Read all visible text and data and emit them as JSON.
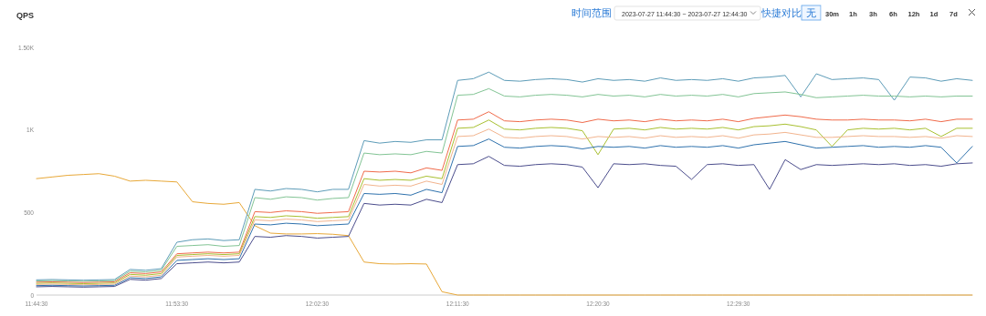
{
  "chart_data": {
    "type": "line",
    "title": "QPS",
    "annotations": [
      "时间范围",
      "2023-07-27 11:44:30 ~ 2023-07-27 12:44:30",
      "快捷对比",
      "无",
      "30m",
      "1h",
      "3h",
      "6h",
      "12h",
      "1d",
      "7d"
    ],
    "x": [
      "2023-07-27T11:44:30",
      "2023-07-27T11:45:30",
      "2023-07-27T11:46:30",
      "2023-07-27T11:47:30",
      "2023-07-27T11:48:30",
      "2023-07-27T11:49:30",
      "2023-07-27T11:50:30",
      "2023-07-27T11:51:30",
      "2023-07-27T11:52:30",
      "2023-07-27T11:53:30",
      "2023-07-27T11:54:30",
      "2023-07-27T11:55:30",
      "2023-07-27T11:56:30",
      "2023-07-27T11:57:30",
      "2023-07-27T11:58:30",
      "2023-07-27T11:59:30",
      "2023-07-27T12:00:30",
      "2023-07-27T12:01:30",
      "2023-07-27T12:02:30",
      "2023-07-27T12:03:30",
      "2023-07-27T12:04:30",
      "2023-07-27T12:05:30",
      "2023-07-27T12:06:30",
      "2023-07-27T12:07:30",
      "2023-07-27T12:08:30",
      "2023-07-27T12:09:30",
      "2023-07-27T12:10:30",
      "2023-07-27T12:11:30",
      "2023-07-27T12:12:30",
      "2023-07-27T12:13:30",
      "2023-07-27T12:14:30",
      "2023-07-27T12:15:30",
      "2023-07-27T12:16:30",
      "2023-07-27T12:17:30",
      "2023-07-27T12:18:30",
      "2023-07-27T12:19:30",
      "2023-07-27T12:20:30",
      "2023-07-27T12:21:30",
      "2023-07-27T12:22:30",
      "2023-07-27T12:23:30",
      "2023-07-27T12:24:30",
      "2023-07-27T12:25:30",
      "2023-07-27T12:26:30",
      "2023-07-27T12:27:30",
      "2023-07-27T12:28:30",
      "2023-07-27T12:29:30",
      "2023-07-27T12:30:30",
      "2023-07-27T12:31:30",
      "2023-07-27T12:32:30",
      "2023-07-27T12:33:30",
      "2023-07-27T12:34:30",
      "2023-07-27T12:35:30",
      "2023-07-27T12:36:30",
      "2023-07-27T12:37:30",
      "2023-07-27T12:38:30",
      "2023-07-27T12:39:30",
      "2023-07-27T12:40:30",
      "2023-07-27T12:41:30",
      "2023-07-27T12:42:30",
      "2023-07-27T12:43:30",
      "2023-07-27T12:44:30"
    ],
    "xlim": [
      "2023-07-27T11:44:30",
      "2023-07-27T12:44:30"
    ],
    "xticks": [
      {
        "value": "2023-07-27T11:44:30",
        "label": "11:44:30"
      },
      {
        "value": "2023-07-27T11:53:30",
        "label": "11:53:30"
      },
      {
        "value": "2023-07-27T12:02:30",
        "label": "12:02:30"
      },
      {
        "value": "2023-07-27T12:11:30",
        "label": "12:11:30"
      },
      {
        "value": "2023-07-27T12:20:30",
        "label": "12:20:30"
      },
      {
        "value": "2023-07-27T12:29:30",
        "label": "12:29:30"
      }
    ],
    "ylim": [
      0,
      1500
    ],
    "yticks": [
      0,
      500,
      {
        "value": 1000,
        "label": "1K"
      },
      {
        "value": 1500,
        "label": "1.50K"
      }
    ],
    "series": [
      {
        "color": "#e8a838",
        "values": [
          705,
          715,
          725,
          730,
          735,
          720,
          690,
          695,
          690,
          685,
          565,
          555,
          550,
          560,
          420,
          375,
          370,
          370,
          372,
          368,
          360,
          200,
          190,
          188,
          190,
          188,
          20,
          0,
          0,
          0,
          0,
          0,
          0,
          0,
          0,
          0,
          0,
          0,
          0,
          0,
          0,
          0,
          0,
          0,
          0,
          0,
          0,
          0,
          0,
          0,
          0,
          0,
          0,
          0,
          0,
          0,
          0,
          0,
          0,
          0,
          0
        ]
      },
      {
        "color": "#5d9cb8",
        "values": [
          92,
          94,
          92,
          90,
          92,
          94,
          155,
          150,
          160,
          320,
          335,
          340,
          330,
          335,
          640,
          630,
          645,
          640,
          625,
          640,
          640,
          935,
          920,
          930,
          925,
          940,
          940,
          1300,
          1310,
          1350,
          1300,
          1295,
          1305,
          1310,
          1305,
          1290,
          1310,
          1300,
          1305,
          1295,
          1315,
          1300,
          1305,
          1300,
          1310,
          1295,
          1315,
          1320,
          1330,
          1200,
          1340,
          1305,
          1310,
          1315,
          1305,
          1180,
          1320,
          1315,
          1295,
          1310,
          1300
        ]
      },
      {
        "color": "#82c494",
        "values": [
          85,
          87,
          85,
          83,
          85,
          87,
          145,
          140,
          150,
          295,
          300,
          305,
          295,
          300,
          590,
          580,
          595,
          590,
          575,
          585,
          590,
          860,
          850,
          855,
          850,
          870,
          860,
          1210,
          1215,
          1250,
          1205,
          1200,
          1210,
          1215,
          1210,
          1200,
          1215,
          1205,
          1210,
          1200,
          1215,
          1205,
          1210,
          1205,
          1215,
          1200,
          1220,
          1225,
          1230,
          1215,
          1195,
          1200,
          1205,
          1210,
          1205,
          1205,
          1200,
          1205,
          1200,
          1205,
          1205
        ]
      },
      {
        "color": "#f06a4a",
        "values": [
          78,
          80,
          78,
          76,
          78,
          80,
          135,
          130,
          140,
          250,
          255,
          260,
          255,
          260,
          505,
          500,
          510,
          505,
          495,
          500,
          505,
          750,
          745,
          750,
          740,
          770,
          755,
          1060,
          1065,
          1110,
          1055,
          1050,
          1060,
          1065,
          1060,
          1045,
          1065,
          1055,
          1060,
          1050,
          1065,
          1055,
          1060,
          1055,
          1065,
          1050,
          1070,
          1080,
          1090,
          1080,
          1065,
          1060,
          1060,
          1065,
          1060,
          1060,
          1055,
          1065,
          1050,
          1065,
          1065
        ]
      },
      {
        "color": "#a8c030",
        "values": [
          71,
          73,
          71,
          69,
          71,
          73,
          125,
          120,
          130,
          240,
          245,
          250,
          245,
          250,
          475,
          470,
          480,
          475,
          465,
          470,
          475,
          705,
          695,
          700,
          695,
          720,
          705,
          1010,
          1015,
          1060,
          1005,
          1000,
          1010,
          1015,
          1010,
          995,
          850,
          1005,
          1010,
          1000,
          1015,
          1005,
          1010,
          1005,
          1015,
          1000,
          1020,
          1025,
          1035,
          1020,
          1000,
          900,
          1000,
          1010,
          1005,
          1010,
          1000,
          1010,
          960,
          1010,
          1010
        ]
      },
      {
        "color": "#f2b48e",
        "values": [
          64,
          66,
          64,
          62,
          64,
          66,
          115,
          110,
          120,
          230,
          235,
          240,
          235,
          240,
          455,
          450,
          460,
          455,
          445,
          450,
          455,
          670,
          660,
          665,
          660,
          690,
          670,
          960,
          965,
          1005,
          955,
          950,
          960,
          965,
          960,
          945,
          960,
          955,
          960,
          950,
          965,
          955,
          960,
          955,
          965,
          950,
          970,
          975,
          985,
          970,
          955,
          955,
          960,
          965,
          960,
          960,
          955,
          960,
          950,
          965,
          960
        ]
      },
      {
        "color": "#2f72ad",
        "values": [
          57,
          59,
          57,
          55,
          57,
          59,
          105,
          100,
          110,
          210,
          215,
          220,
          215,
          220,
          430,
          425,
          435,
          430,
          420,
          425,
          430,
          615,
          610,
          615,
          605,
          640,
          620,
          900,
          905,
          945,
          895,
          890,
          900,
          905,
          900,
          885,
          900,
          895,
          900,
          890,
          905,
          895,
          900,
          895,
          905,
          890,
          910,
          920,
          930,
          910,
          890,
          895,
          900,
          905,
          895,
          900,
          895,
          905,
          895,
          800,
          900
        ]
      },
      {
        "color": "#4b4d8c",
        "values": [
          50,
          52,
          50,
          48,
          50,
          52,
          95,
          90,
          100,
          190,
          195,
          200,
          195,
          200,
          355,
          350,
          360,
          355,
          345,
          350,
          355,
          555,
          545,
          550,
          545,
          580,
          560,
          790,
          795,
          840,
          785,
          780,
          790,
          795,
          790,
          775,
          650,
          795,
          790,
          795,
          785,
          780,
          700,
          790,
          795,
          785,
          790,
          640,
          820,
          760,
          790,
          785,
          790,
          795,
          790,
          795,
          785,
          790,
          780,
          795,
          800
        ]
      }
    ]
  }
}
